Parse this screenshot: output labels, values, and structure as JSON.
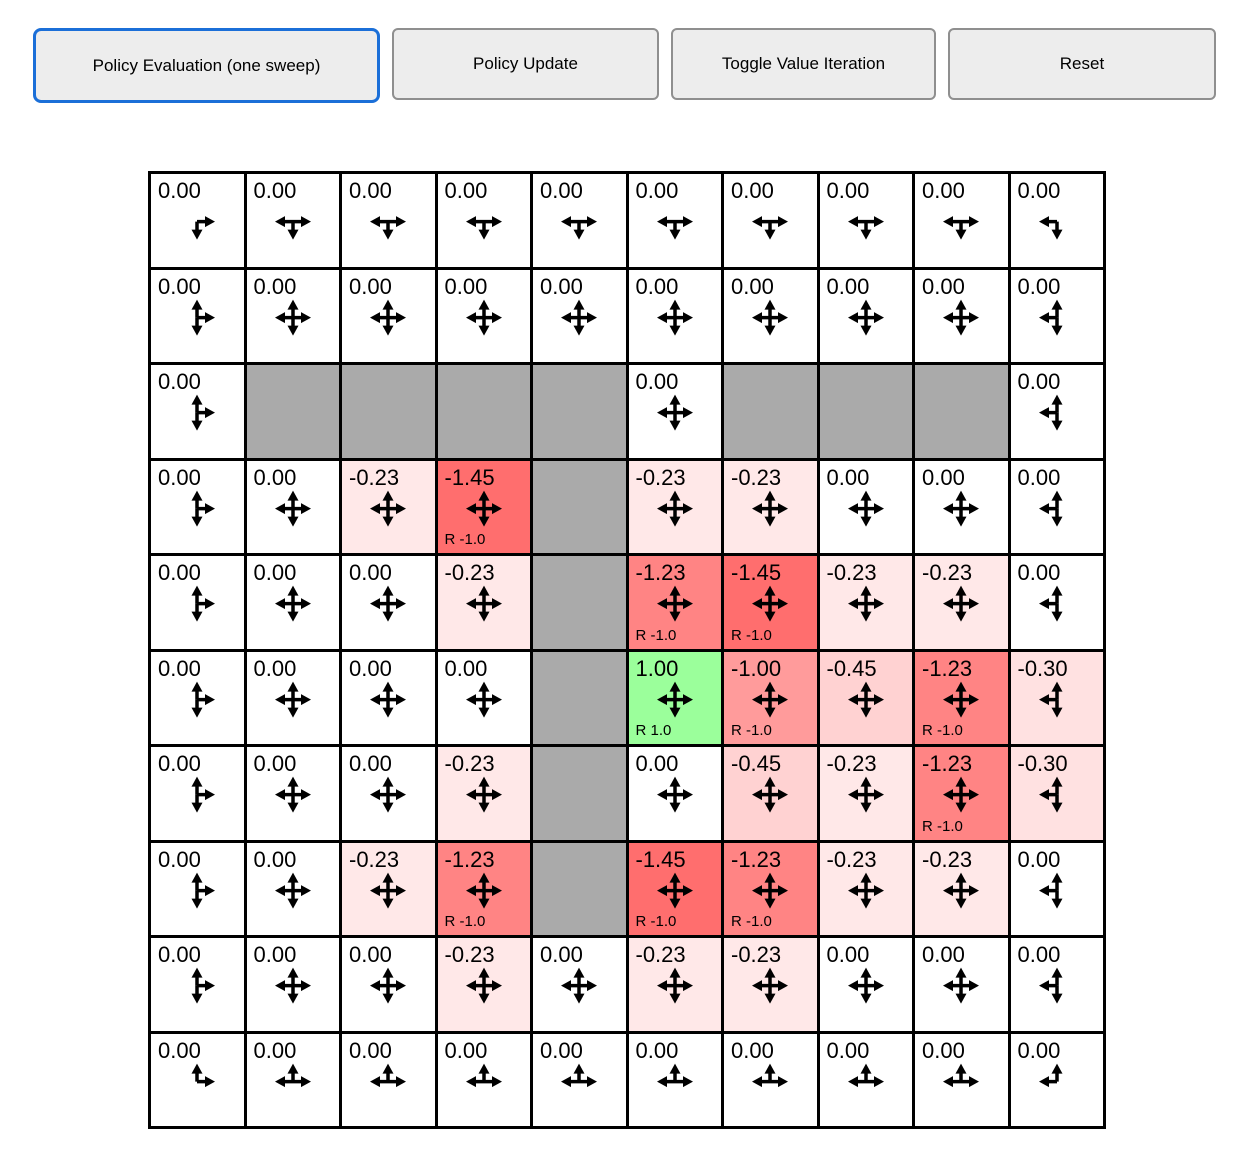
{
  "toolbar": {
    "buttons": [
      {
        "label": "Policy Evaluation (one sweep)",
        "active": true
      },
      {
        "label": "Policy Update",
        "active": false
      },
      {
        "label": "Toggle Value Iteration",
        "active": false
      },
      {
        "label": "Reset",
        "active": false
      }
    ],
    "active_border_color": "#1b6fd8",
    "button_bg": "#ededed",
    "button_border": "#8f8f8f"
  },
  "colors": {
    "wall": "#aaaaaa",
    "grid_line": "#000000",
    "goal_green": "#9bff9b",
    "penalty_red_strong": "#ff6e6e",
    "text": "#000000"
  },
  "grid": {
    "rows": [
      [
        {
          "type": "state",
          "value": "0.00",
          "bg": "#ffffff",
          "arrows": [
            "right",
            "down"
          ]
        },
        {
          "type": "state",
          "value": "0.00",
          "bg": "#ffffff",
          "arrows": [
            "left",
            "right",
            "down"
          ]
        },
        {
          "type": "state",
          "value": "0.00",
          "bg": "#ffffff",
          "arrows": [
            "left",
            "right",
            "down"
          ]
        },
        {
          "type": "state",
          "value": "0.00",
          "bg": "#ffffff",
          "arrows": [
            "left",
            "right",
            "down"
          ]
        },
        {
          "type": "state",
          "value": "0.00",
          "bg": "#ffffff",
          "arrows": [
            "left",
            "right",
            "down"
          ]
        },
        {
          "type": "state",
          "value": "0.00",
          "bg": "#ffffff",
          "arrows": [
            "left",
            "right",
            "down"
          ]
        },
        {
          "type": "state",
          "value": "0.00",
          "bg": "#ffffff",
          "arrows": [
            "left",
            "right",
            "down"
          ]
        },
        {
          "type": "state",
          "value": "0.00",
          "bg": "#ffffff",
          "arrows": [
            "left",
            "right",
            "down"
          ]
        },
        {
          "type": "state",
          "value": "0.00",
          "bg": "#ffffff",
          "arrows": [
            "left",
            "right",
            "down"
          ]
        },
        {
          "type": "state",
          "value": "0.00",
          "bg": "#ffffff",
          "arrows": [
            "left",
            "down"
          ]
        }
      ],
      [
        {
          "type": "state",
          "value": "0.00",
          "bg": "#ffffff",
          "arrows": [
            "up",
            "down",
            "right"
          ]
        },
        {
          "type": "state",
          "value": "0.00",
          "bg": "#ffffff",
          "arrows": [
            "up",
            "down",
            "left",
            "right"
          ]
        },
        {
          "type": "state",
          "value": "0.00",
          "bg": "#ffffff",
          "arrows": [
            "up",
            "down",
            "left",
            "right"
          ]
        },
        {
          "type": "state",
          "value": "0.00",
          "bg": "#ffffff",
          "arrows": [
            "up",
            "down",
            "left",
            "right"
          ]
        },
        {
          "type": "state",
          "value": "0.00",
          "bg": "#ffffff",
          "arrows": [
            "up",
            "down",
            "left",
            "right"
          ]
        },
        {
          "type": "state",
          "value": "0.00",
          "bg": "#ffffff",
          "arrows": [
            "up",
            "down",
            "left",
            "right"
          ]
        },
        {
          "type": "state",
          "value": "0.00",
          "bg": "#ffffff",
          "arrows": [
            "up",
            "down",
            "left",
            "right"
          ]
        },
        {
          "type": "state",
          "value": "0.00",
          "bg": "#ffffff",
          "arrows": [
            "up",
            "down",
            "left",
            "right"
          ]
        },
        {
          "type": "state",
          "value": "0.00",
          "bg": "#ffffff",
          "arrows": [
            "up",
            "down",
            "left",
            "right"
          ]
        },
        {
          "type": "state",
          "value": "0.00",
          "bg": "#ffffff",
          "arrows": [
            "up",
            "down",
            "left"
          ]
        }
      ],
      [
        {
          "type": "state",
          "value": "0.00",
          "bg": "#ffffff",
          "arrows": [
            "up",
            "down",
            "right"
          ]
        },
        {
          "type": "wall"
        },
        {
          "type": "wall"
        },
        {
          "type": "wall"
        },
        {
          "type": "wall"
        },
        {
          "type": "state",
          "value": "0.00",
          "bg": "#ffffff",
          "arrows": [
            "up",
            "down",
            "left",
            "right"
          ]
        },
        {
          "type": "wall"
        },
        {
          "type": "wall"
        },
        {
          "type": "wall"
        },
        {
          "type": "state",
          "value": "0.00",
          "bg": "#ffffff",
          "arrows": [
            "up",
            "down",
            "left"
          ]
        }
      ],
      [
        {
          "type": "state",
          "value": "0.00",
          "bg": "#ffffff",
          "arrows": [
            "up",
            "down",
            "right"
          ]
        },
        {
          "type": "state",
          "value": "0.00",
          "bg": "#ffffff",
          "arrows": [
            "up",
            "down",
            "left",
            "right"
          ]
        },
        {
          "type": "state",
          "value": "-0.23",
          "bg": "#ffe8e8",
          "arrows": [
            "up",
            "down",
            "left",
            "right"
          ]
        },
        {
          "type": "state",
          "value": "-1.45",
          "bg": "#ff6e6e",
          "reward": "R -1.0",
          "arrows": [
            "up",
            "down",
            "left",
            "right"
          ]
        },
        {
          "type": "wall"
        },
        {
          "type": "state",
          "value": "-0.23",
          "bg": "#ffe8e8",
          "arrows": [
            "up",
            "down",
            "left",
            "right"
          ]
        },
        {
          "type": "state",
          "value": "-0.23",
          "bg": "#ffe8e8",
          "arrows": [
            "up",
            "down",
            "left",
            "right"
          ]
        },
        {
          "type": "state",
          "value": "0.00",
          "bg": "#ffffff",
          "arrows": [
            "up",
            "down",
            "left",
            "right"
          ]
        },
        {
          "type": "state",
          "value": "0.00",
          "bg": "#ffffff",
          "arrows": [
            "up",
            "down",
            "left",
            "right"
          ]
        },
        {
          "type": "state",
          "value": "0.00",
          "bg": "#ffffff",
          "arrows": [
            "up",
            "down",
            "left"
          ]
        }
      ],
      [
        {
          "type": "state",
          "value": "0.00",
          "bg": "#ffffff",
          "arrows": [
            "up",
            "down",
            "right"
          ]
        },
        {
          "type": "state",
          "value": "0.00",
          "bg": "#ffffff",
          "arrows": [
            "up",
            "down",
            "left",
            "right"
          ]
        },
        {
          "type": "state",
          "value": "0.00",
          "bg": "#ffffff",
          "arrows": [
            "up",
            "down",
            "left",
            "right"
          ]
        },
        {
          "type": "state",
          "value": "-0.23",
          "bg": "#ffe8e8",
          "arrows": [
            "up",
            "down",
            "left",
            "right"
          ]
        },
        {
          "type": "wall"
        },
        {
          "type": "state",
          "value": "-1.23",
          "bg": "#ff8484",
          "reward": "R -1.0",
          "arrows": [
            "up",
            "down",
            "left",
            "right"
          ]
        },
        {
          "type": "state",
          "value": "-1.45",
          "bg": "#ff6e6e",
          "reward": "R -1.0",
          "arrows": [
            "up",
            "down",
            "left",
            "right"
          ]
        },
        {
          "type": "state",
          "value": "-0.23",
          "bg": "#ffe8e8",
          "arrows": [
            "up",
            "down",
            "left",
            "right"
          ]
        },
        {
          "type": "state",
          "value": "-0.23",
          "bg": "#ffe8e8",
          "arrows": [
            "up",
            "down",
            "left",
            "right"
          ]
        },
        {
          "type": "state",
          "value": "0.00",
          "bg": "#ffffff",
          "arrows": [
            "up",
            "down",
            "left"
          ]
        }
      ],
      [
        {
          "type": "state",
          "value": "0.00",
          "bg": "#ffffff",
          "arrows": [
            "up",
            "down",
            "right"
          ]
        },
        {
          "type": "state",
          "value": "0.00",
          "bg": "#ffffff",
          "arrows": [
            "up",
            "down",
            "left",
            "right"
          ]
        },
        {
          "type": "state",
          "value": "0.00",
          "bg": "#ffffff",
          "arrows": [
            "up",
            "down",
            "left",
            "right"
          ]
        },
        {
          "type": "state",
          "value": "0.00",
          "bg": "#ffffff",
          "arrows": [
            "up",
            "down",
            "left",
            "right"
          ]
        },
        {
          "type": "wall"
        },
        {
          "type": "state",
          "value": "1.00",
          "bg": "#9bff9b",
          "reward": "R 1.0",
          "arrows": [
            "up",
            "down",
            "left",
            "right"
          ]
        },
        {
          "type": "state",
          "value": "-1.00",
          "bg": "#ff9b9b",
          "reward": "R -1.0",
          "arrows": [
            "up",
            "down",
            "left",
            "right"
          ]
        },
        {
          "type": "state",
          "value": "-0.45",
          "bg": "#ffd2d2",
          "arrows": [
            "up",
            "down",
            "left",
            "right"
          ]
        },
        {
          "type": "state",
          "value": "-1.23",
          "bg": "#ff8484",
          "reward": "R -1.0",
          "arrows": [
            "up",
            "down",
            "left",
            "right"
          ]
        },
        {
          "type": "state",
          "value": "-0.30",
          "bg": "#ffe1e1",
          "arrows": [
            "up",
            "down",
            "left"
          ]
        }
      ],
      [
        {
          "type": "state",
          "value": "0.00",
          "bg": "#ffffff",
          "arrows": [
            "up",
            "down",
            "right"
          ]
        },
        {
          "type": "state",
          "value": "0.00",
          "bg": "#ffffff",
          "arrows": [
            "up",
            "down",
            "left",
            "right"
          ]
        },
        {
          "type": "state",
          "value": "0.00",
          "bg": "#ffffff",
          "arrows": [
            "up",
            "down",
            "left",
            "right"
          ]
        },
        {
          "type": "state",
          "value": "-0.23",
          "bg": "#ffe8e8",
          "arrows": [
            "up",
            "down",
            "left",
            "right"
          ]
        },
        {
          "type": "wall"
        },
        {
          "type": "state",
          "value": "0.00",
          "bg": "#ffffff",
          "arrows": [
            "up",
            "down",
            "left",
            "right"
          ]
        },
        {
          "type": "state",
          "value": "-0.45",
          "bg": "#ffd2d2",
          "arrows": [
            "up",
            "down",
            "left",
            "right"
          ]
        },
        {
          "type": "state",
          "value": "-0.23",
          "bg": "#ffe8e8",
          "arrows": [
            "up",
            "down",
            "left",
            "right"
          ]
        },
        {
          "type": "state",
          "value": "-1.23",
          "bg": "#ff8484",
          "reward": "R -1.0",
          "arrows": [
            "up",
            "down",
            "left",
            "right"
          ]
        },
        {
          "type": "state",
          "value": "-0.30",
          "bg": "#ffe1e1",
          "arrows": [
            "up",
            "down",
            "left"
          ]
        }
      ],
      [
        {
          "type": "state",
          "value": "0.00",
          "bg": "#ffffff",
          "arrows": [
            "up",
            "down",
            "right"
          ]
        },
        {
          "type": "state",
          "value": "0.00",
          "bg": "#ffffff",
          "arrows": [
            "up",
            "down",
            "left",
            "right"
          ]
        },
        {
          "type": "state",
          "value": "-0.23",
          "bg": "#ffe8e8",
          "arrows": [
            "up",
            "down",
            "left",
            "right"
          ]
        },
        {
          "type": "state",
          "value": "-1.23",
          "bg": "#ff8484",
          "reward": "R -1.0",
          "arrows": [
            "up",
            "down",
            "left",
            "right"
          ]
        },
        {
          "type": "wall"
        },
        {
          "type": "state",
          "value": "-1.45",
          "bg": "#ff6e6e",
          "reward": "R -1.0",
          "arrows": [
            "up",
            "down",
            "left",
            "right"
          ]
        },
        {
          "type": "state",
          "value": "-1.23",
          "bg": "#ff8484",
          "reward": "R -1.0",
          "arrows": [
            "up",
            "down",
            "left",
            "right"
          ]
        },
        {
          "type": "state",
          "value": "-0.23",
          "bg": "#ffe8e8",
          "arrows": [
            "up",
            "down",
            "left",
            "right"
          ]
        },
        {
          "type": "state",
          "value": "-0.23",
          "bg": "#ffe8e8",
          "arrows": [
            "up",
            "down",
            "left",
            "right"
          ]
        },
        {
          "type": "state",
          "value": "0.00",
          "bg": "#ffffff",
          "arrows": [
            "up",
            "down",
            "left"
          ]
        }
      ],
      [
        {
          "type": "state",
          "value": "0.00",
          "bg": "#ffffff",
          "arrows": [
            "up",
            "down",
            "right"
          ]
        },
        {
          "type": "state",
          "value": "0.00",
          "bg": "#ffffff",
          "arrows": [
            "up",
            "down",
            "left",
            "right"
          ]
        },
        {
          "type": "state",
          "value": "0.00",
          "bg": "#ffffff",
          "arrows": [
            "up",
            "down",
            "left",
            "right"
          ]
        },
        {
          "type": "state",
          "value": "-0.23",
          "bg": "#ffe8e8",
          "arrows": [
            "up",
            "down",
            "left",
            "right"
          ]
        },
        {
          "type": "state",
          "value": "0.00",
          "bg": "#ffffff",
          "arrows": [
            "up",
            "down",
            "left",
            "right"
          ]
        },
        {
          "type": "state",
          "value": "-0.23",
          "bg": "#ffe8e8",
          "arrows": [
            "up",
            "down",
            "left",
            "right"
          ]
        },
        {
          "type": "state",
          "value": "-0.23",
          "bg": "#ffe8e8",
          "arrows": [
            "up",
            "down",
            "left",
            "right"
          ]
        },
        {
          "type": "state",
          "value": "0.00",
          "bg": "#ffffff",
          "arrows": [
            "up",
            "down",
            "left",
            "right"
          ]
        },
        {
          "type": "state",
          "value": "0.00",
          "bg": "#ffffff",
          "arrows": [
            "up",
            "down",
            "left",
            "right"
          ]
        },
        {
          "type": "state",
          "value": "0.00",
          "bg": "#ffffff",
          "arrows": [
            "up",
            "down",
            "left"
          ]
        }
      ],
      [
        {
          "type": "state",
          "value": "0.00",
          "bg": "#ffffff",
          "arrows": [
            "up",
            "right"
          ]
        },
        {
          "type": "state",
          "value": "0.00",
          "bg": "#ffffff",
          "arrows": [
            "left",
            "right",
            "up"
          ]
        },
        {
          "type": "state",
          "value": "0.00",
          "bg": "#ffffff",
          "arrows": [
            "left",
            "right",
            "up"
          ]
        },
        {
          "type": "state",
          "value": "0.00",
          "bg": "#ffffff",
          "arrows": [
            "left",
            "right",
            "up"
          ]
        },
        {
          "type": "state",
          "value": "0.00",
          "bg": "#ffffff",
          "arrows": [
            "left",
            "right",
            "up"
          ]
        },
        {
          "type": "state",
          "value": "0.00",
          "bg": "#ffffff",
          "arrows": [
            "left",
            "right",
            "up"
          ]
        },
        {
          "type": "state",
          "value": "0.00",
          "bg": "#ffffff",
          "arrows": [
            "left",
            "right",
            "up"
          ]
        },
        {
          "type": "state",
          "value": "0.00",
          "bg": "#ffffff",
          "arrows": [
            "left",
            "right",
            "up"
          ]
        },
        {
          "type": "state",
          "value": "0.00",
          "bg": "#ffffff",
          "arrows": [
            "left",
            "right",
            "up"
          ]
        },
        {
          "type": "state",
          "value": "0.00",
          "bg": "#ffffff",
          "arrows": [
            "up",
            "left"
          ]
        }
      ]
    ]
  }
}
